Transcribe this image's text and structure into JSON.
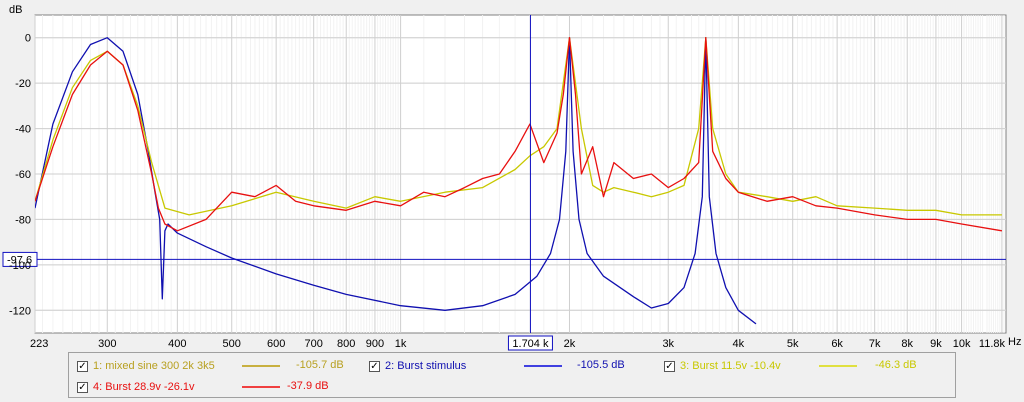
{
  "chart_data": {
    "type": "line",
    "title": "",
    "xlabel": "Hz",
    "ylabel": "dB",
    "x_scale": "log",
    "xlim": [
      223,
      12000
    ],
    "ylim": [
      -130,
      10
    ],
    "grid": true,
    "x_ticks": [
      "223",
      "300",
      "400",
      "500",
      "600",
      "700",
      "800",
      "900",
      "1k",
      "2k",
      "3k",
      "4k",
      "5k",
      "6k",
      "7k",
      "8k",
      "9k",
      "10k",
      "11.8k"
    ],
    "y_ticks": [
      "0",
      "-20",
      "-40",
      "-60",
      "-80",
      "-100",
      "-120"
    ],
    "cursor": {
      "x": 1704,
      "y": -97.6,
      "x_label": "1.704 k",
      "y_label": "-97.6"
    },
    "series": [
      {
        "name": "2: Burst stimulus",
        "color": "#1010b0",
        "x": [
          223,
          240,
          260,
          280,
          300,
          320,
          340,
          355,
          365,
          372,
          376,
          380,
          385,
          400,
          450,
          500,
          600,
          700,
          800,
          1000,
          1200,
          1400,
          1600,
          1750,
          1850,
          1920,
          1970,
          2000,
          2030,
          2080,
          2150,
          2300,
          2600,
          2800,
          3000,
          3200,
          3350,
          3450,
          3500,
          3550,
          3650,
          3800,
          4000,
          4300
        ],
        "y": [
          -75,
          -38,
          -15,
          -3,
          0,
          -6,
          -25,
          -50,
          -68,
          -80,
          -115,
          -85,
          -82,
          -86,
          -92,
          -97,
          -104,
          -109,
          -113,
          -118,
          -120,
          -118,
          -113,
          -105,
          -95,
          -80,
          -50,
          0,
          -50,
          -80,
          -95,
          -105,
          -114,
          -119,
          -117,
          -110,
          -95,
          -70,
          0,
          -70,
          -95,
          -110,
          -120,
          -126
        ]
      },
      {
        "name": "3: Burst 11.5v -10.4v",
        "color": "#c8c800",
        "x": [
          223,
          240,
          260,
          280,
          300,
          320,
          340,
          360,
          380,
          420,
          500,
          600,
          700,
          800,
          900,
          1000,
          1200,
          1400,
          1600,
          1700,
          1800,
          1900,
          2000,
          2100,
          2200,
          2300,
          2400,
          2600,
          2800,
          3000,
          3200,
          3400,
          3500,
          3600,
          3800,
          4000,
          4500,
          5000,
          5500,
          6000,
          7000,
          8000,
          9000,
          10000,
          11800
        ],
        "y": [
          -72,
          -45,
          -22,
          -10,
          -6,
          -12,
          -30,
          -55,
          -75,
          -78,
          -74,
          -68,
          -72,
          -75,
          -70,
          -72,
          -68,
          -66,
          -58,
          -52,
          -48,
          -40,
          0,
          -40,
          -65,
          -68,
          -66,
          -68,
          -70,
          -68,
          -65,
          -40,
          0,
          -40,
          -60,
          -68,
          -70,
          -72,
          -70,
          -74,
          -75,
          -76,
          -76,
          -78,
          -78
        ]
      },
      {
        "name": "4: Burst  28.9v -26.1v",
        "color": "#e81010",
        "x": [
          223,
          240,
          260,
          280,
          300,
          320,
          340,
          360,
          370,
          380,
          400,
          450,
          500,
          550,
          600,
          650,
          700,
          800,
          900,
          1000,
          1100,
          1200,
          1300,
          1400,
          1500,
          1600,
          1700,
          1800,
          1900,
          1950,
          2000,
          2050,
          2100,
          2200,
          2300,
          2400,
          2600,
          2800,
          3000,
          3200,
          3400,
          3500,
          3600,
          3800,
          4000,
          4500,
          5000,
          5500,
          6000,
          7000,
          8000,
          9000,
          10000,
          11800
        ],
        "y": [
          -72,
          -48,
          -25,
          -12,
          -6,
          -12,
          -32,
          -60,
          -75,
          -82,
          -85,
          -80,
          -68,
          -70,
          -65,
          -72,
          -74,
          -76,
          -72,
          -74,
          -68,
          -70,
          -66,
          -62,
          -60,
          -50,
          -38,
          -55,
          -42,
          -25,
          0,
          -25,
          -60,
          -48,
          -70,
          -55,
          -62,
          -60,
          -66,
          -62,
          -55,
          0,
          -50,
          -62,
          -68,
          -72,
          -70,
          -74,
          -75,
          -78,
          -80,
          -80,
          -82,
          -85
        ]
      }
    ]
  },
  "legend": [
    {
      "checked": "✓",
      "label": "1: mixed sine 300 2k 3k5",
      "value": "-105.7 dB",
      "color": "#b8a020",
      "line_color": "#c8b040"
    },
    {
      "checked": "✓",
      "label": "2: Burst stimulus",
      "value": "-105.5 dB",
      "color": "#1010b0",
      "line_color": "#4040e0"
    },
    {
      "checked": "✓",
      "label": "3: Burst 11.5v -10.4v",
      "value": "-46.3 dB",
      "color": "#c8c800",
      "line_color": "#e0e040"
    },
    {
      "checked": "✓",
      "label": "4: Burst  28.9v -26.1v",
      "value": "-37.9 dB",
      "color": "#e81010",
      "line_color": "#f04040"
    }
  ]
}
